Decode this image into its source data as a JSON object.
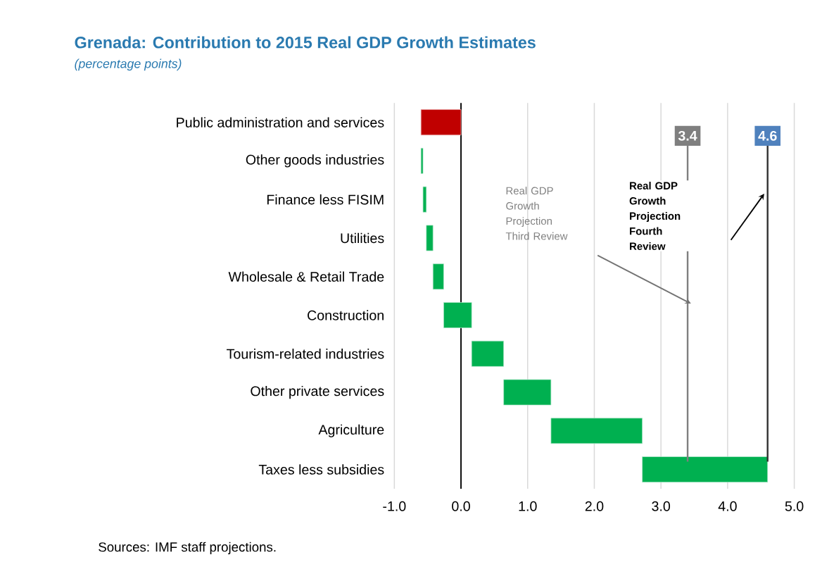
{
  "chart_data": {
    "type": "bar",
    "orientation": "horizontal",
    "title": "Grenada: Contribution to 2015 Real GDP Growth Estimates",
    "subtitle": "(percentage points)",
    "categories": [
      "Public administration and services",
      "Other goods industries",
      "Finance less FISIM",
      "Utilities",
      "Wholesale & Retail Trade",
      "Construction",
      "Tourism-related industries",
      "Other private services",
      "Agriculture",
      "Taxes less subsidies"
    ],
    "values": [
      -0.6,
      0.03,
      0.05,
      0.1,
      0.16,
      0.42,
      0.48,
      0.71,
      1.37,
      1.88
    ],
    "base": [
      0,
      -0.6,
      -0.57,
      -0.52,
      -0.42,
      -0.26,
      0.16,
      0.64,
      1.35,
      2.72
    ],
    "colors": [
      "#c00000",
      "#00b050",
      "#00b050",
      "#00b050",
      "#00b050",
      "#00b050",
      "#00b050",
      "#00b050",
      "#00b050",
      "#00b050"
    ],
    "xlim": [
      -1,
      5
    ],
    "xticks": [
      {
        "value": -1,
        "label": "-1.0"
      },
      {
        "value": 0,
        "label": "0.0"
      },
      {
        "value": 1,
        "label": "1.0"
      },
      {
        "value": 2,
        "label": "2.0"
      },
      {
        "value": 3,
        "label": "3.0"
      },
      {
        "value": 4,
        "label": "4.0"
      },
      {
        "value": 5,
        "label": "5.0"
      }
    ],
    "grid": "x",
    "ref_lines": [
      {
        "axis": "x",
        "value": 3.4,
        "label": "3.4",
        "color": "#7f7f7f"
      },
      {
        "axis": "x",
        "value": 4.6,
        "label": "4.6",
        "color": "#333333"
      }
    ],
    "annotations": [
      "Real GDP Growth Projection Third Review",
      "Real GDP Growth Projection Fourth Review",
      "Sources: IMF staff projections."
    ]
  }
}
